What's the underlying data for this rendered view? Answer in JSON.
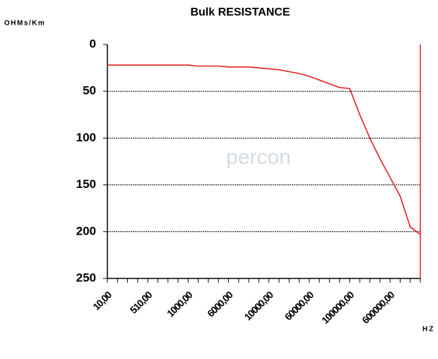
{
  "chart_data": {
    "type": "line",
    "title": "Bulk RESISTANCE",
    "y_label": "OHMs/Km",
    "x_label": "HZ",
    "watermark": "percon",
    "categories": [
      "10,00",
      null,
      null,
      null,
      "510,00",
      null,
      null,
      null,
      "1000,00",
      null,
      null,
      null,
      "6000,00",
      null,
      null,
      null,
      "10000,00",
      null,
      null,
      null,
      "60000,00",
      null,
      null,
      null,
      "100000,00",
      null,
      null,
      null,
      "600000,00",
      null,
      null,
      null
    ],
    "series": [
      {
        "name": "Bulk RESISTANCE",
        "color": "#e0201b",
        "values": [
          22,
          22,
          22,
          22,
          22,
          22,
          22,
          22,
          22,
          23,
          23,
          23,
          24,
          24,
          24,
          25,
          26,
          27,
          29,
          31,
          34,
          38,
          42,
          46,
          47,
          75,
          100,
          122,
          142,
          162,
          195,
          203
        ]
      }
    ],
    "ylim": [
      0,
      250
    ],
    "yticks": [
      0,
      50,
      100,
      150,
      200,
      250
    ],
    "y_inverted": true,
    "grid": true
  }
}
